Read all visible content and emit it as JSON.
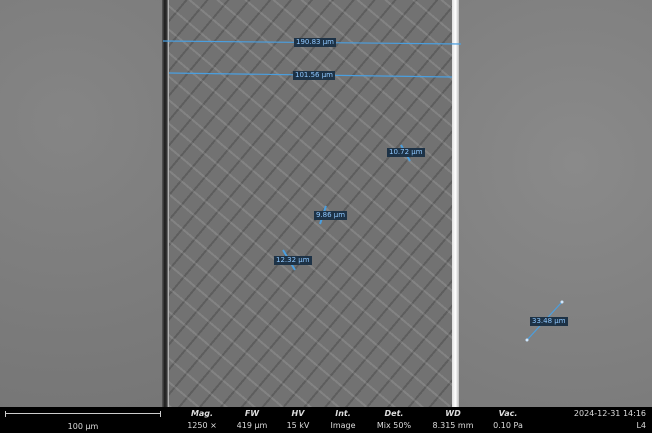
{
  "measurements": [
    "190.83 µm",
    "101.56 µm",
    "10.72 µm",
    "9.86 µm",
    "12.32 µm",
    "33.48 µm"
  ],
  "scale_bar": "100 µm",
  "info": [
    {
      "label": "Mag.",
      "value": "1250 ×"
    },
    {
      "label": "FW",
      "value": "419 µm"
    },
    {
      "label": "HV",
      "value": "15 kV"
    },
    {
      "label": "Int.",
      "value": "Image"
    },
    {
      "label": "Det.",
      "value": "Mix 50%"
    },
    {
      "label": "WD",
      "value": "8.315 mm"
    },
    {
      "label": "Vac.",
      "value": "0.10 Pa"
    }
  ],
  "datetime": "2024-12-31 14:16",
  "frame_id": "L4",
  "colors": {
    "measure": "#4a9fe0",
    "bar": "#000000"
  }
}
